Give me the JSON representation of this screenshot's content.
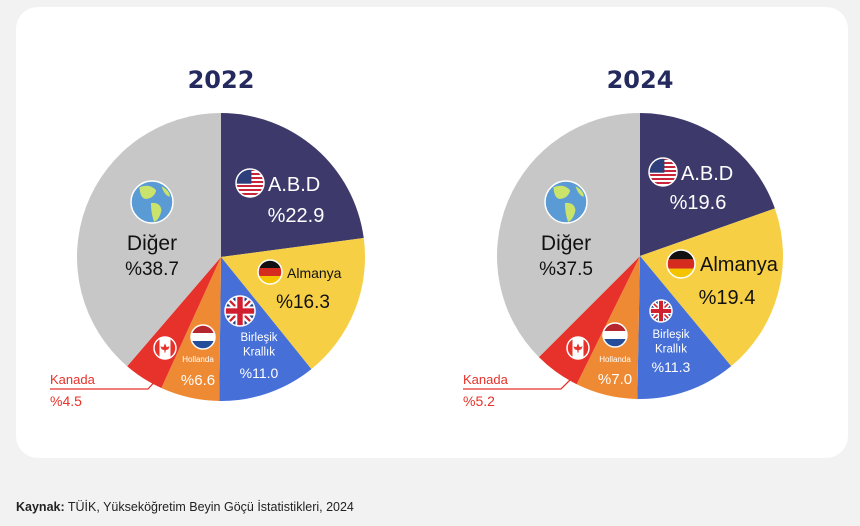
{
  "chart_data": [
    {
      "type": "pie",
      "title": "2022",
      "start": "12 o'clock, clockwise",
      "slices": [
        {
          "key": "abd",
          "label": "A.B.D",
          "value": 22.9,
          "value_label": "%22.9",
          "color": "#3d3a6b",
          "text_color": "#ffffff",
          "icon": "us-flag-icon"
        },
        {
          "key": "almanya",
          "label": "Almanya",
          "value": 16.3,
          "value_label": "%16.3",
          "color": "#f6cf45",
          "text_color": "#111111",
          "icon": "germany-flag-icon"
        },
        {
          "key": "birlesik_krallik",
          "label": "Birleşik Krallık",
          "label_lines": [
            "Birleşik",
            "Krallık"
          ],
          "value": 11.0,
          "value_label": "%11.0",
          "color": "#4670d8",
          "text_color": "#ffffff",
          "icon": "uk-flag-icon"
        },
        {
          "key": "hollanda",
          "label": "Hollanda",
          "value": 6.6,
          "value_label": "%6.6",
          "color": "#ef8a34",
          "text_color": "#ffffff",
          "icon": "netherlands-flag-icon"
        },
        {
          "key": "kanada",
          "label": "Kanada",
          "value": 4.5,
          "value_label": "%4.5",
          "color": "#e6322a",
          "text_color": "#e6322a",
          "icon": "canada-flag-icon",
          "callout": true
        },
        {
          "key": "diger",
          "label": "Diğer",
          "value": 38.7,
          "value_label": "%38.7",
          "color": "#c7c7c7",
          "text_color": "#111111",
          "icon": "globe-icon"
        }
      ]
    },
    {
      "type": "pie",
      "title": "2024",
      "start": "12 o'clock, clockwise",
      "slices": [
        {
          "key": "abd",
          "label": "A.B.D",
          "value": 19.6,
          "value_label": "%19.6",
          "color": "#3d3a6b",
          "text_color": "#ffffff",
          "icon": "us-flag-icon"
        },
        {
          "key": "almanya",
          "label": "Almanya",
          "value": 19.4,
          "value_label": "%19.4",
          "color": "#f6cf45",
          "text_color": "#111111",
          "icon": "germany-flag-icon"
        },
        {
          "key": "birlesik_krallik",
          "label": "Birleşik Krallık",
          "label_lines": [
            "Birleşik",
            "Krallık"
          ],
          "value": 11.3,
          "value_label": "%11.3",
          "color": "#4670d8",
          "text_color": "#ffffff",
          "icon": "uk-flag-icon"
        },
        {
          "key": "hollanda",
          "label": "Hollanda",
          "value": 7.0,
          "value_label": "%7.0",
          "color": "#ef8a34",
          "text_color": "#ffffff",
          "icon": "netherlands-flag-icon"
        },
        {
          "key": "kanada",
          "label": "Kanada",
          "value": 5.2,
          "value_label": "%5.2",
          "color": "#e6322a",
          "text_color": "#e6322a",
          "icon": "canada-flag-icon",
          "callout": true
        },
        {
          "key": "diger",
          "label": "Diğer",
          "value": 37.5,
          "value_label": "%37.5",
          "color": "#c7c7c7",
          "text_color": "#111111",
          "icon": "globe-icon"
        }
      ]
    }
  ],
  "source": {
    "prefix": "Kaynak:",
    "text": " TÜİK, Yükseköğretim Beyin Göçü İstatistikleri, 2024"
  }
}
